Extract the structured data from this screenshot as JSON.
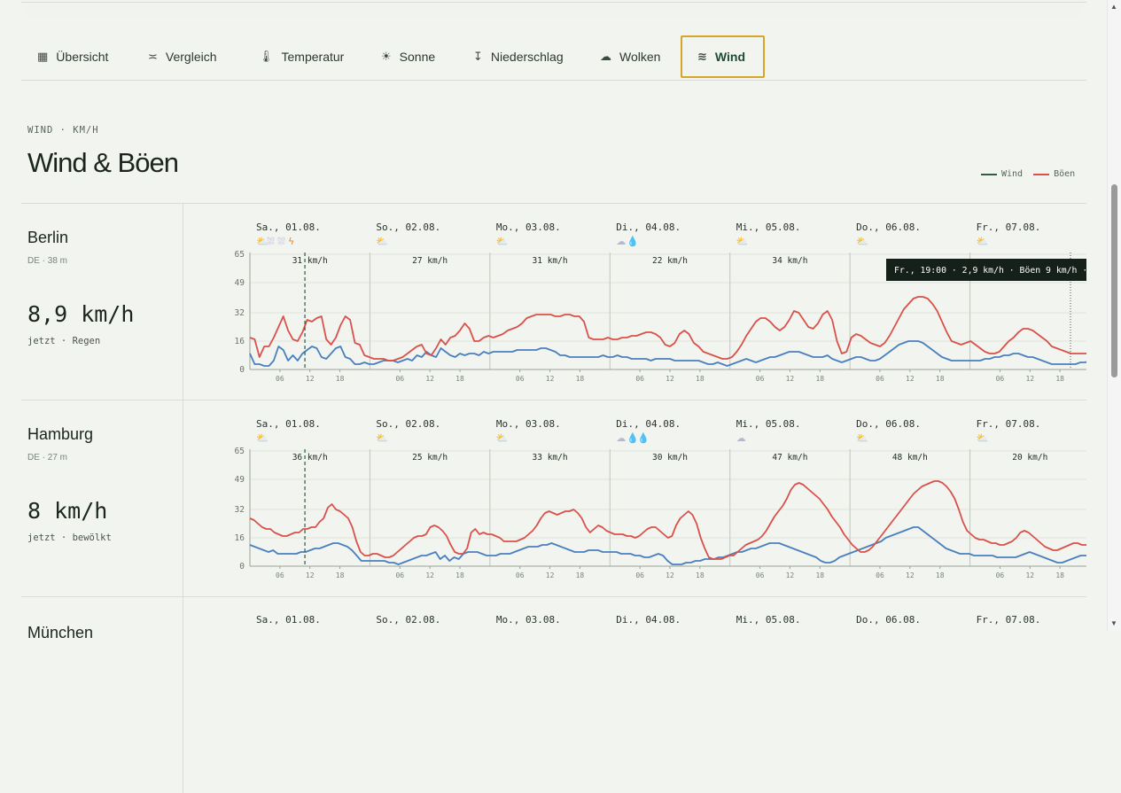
{
  "tabs": [
    {
      "label": "Übersicht",
      "icon": "grid-icon",
      "glyph": "▦"
    },
    {
      "label": "Vergleich",
      "icon": "compare-icon",
      "glyph": "≍"
    },
    {
      "label": "Temperatur",
      "icon": "thermometer-icon",
      "glyph": "🌡"
    },
    {
      "label": "Sonne",
      "icon": "sun-icon",
      "glyph": "☀"
    },
    {
      "label": "Niederschlag",
      "icon": "precipitation-icon",
      "glyph": "↧"
    },
    {
      "label": "Wolken",
      "icon": "cloud-icon",
      "glyph": "☁"
    },
    {
      "label": "Wind",
      "icon": "wind-icon",
      "glyph": "≋",
      "active": true
    }
  ],
  "header": {
    "eyebrow": "WIND · KM/H",
    "title": "Wind & Böen"
  },
  "legend": {
    "wind": "Wind",
    "gusts": "Böen",
    "wind_color": "#2f5d43",
    "gust_color": "#d9514a"
  },
  "colors": {
    "wind_line": "#4a7fbf",
    "gust_line": "#d9514a",
    "accent": "#d6a52c"
  },
  "days": [
    "Sa., 01.08.",
    "So., 02.08.",
    "Mo., 03.08.",
    "Di., 04.08.",
    "Mi., 05.08.",
    "Do., 06.08.",
    "Fr., 07.08."
  ],
  "hour_ticks": [
    "06",
    "12",
    "18"
  ],
  "chart_data": [
    {
      "type": "line",
      "title": "Berlin",
      "ylim": [
        0,
        65
      ],
      "yticks": [
        0,
        16,
        32,
        49,
        65
      ],
      "daily_max_labels": [
        "31 km/h",
        "27 km/h",
        "31 km/h",
        "22 km/h",
        "34 km/h",
        "",
        ""
      ],
      "weather_icons": [
        [
          "cloud-sun",
          "rain",
          "rain",
          "thunder"
        ],
        [
          "partly-sunny"
        ],
        [
          "partly-sunny"
        ],
        [
          "cloud",
          "drop"
        ],
        [
          "partly-sunny"
        ],
        [
          "partly-sunny"
        ],
        [
          "partly-sunny"
        ]
      ],
      "tooltip": "Fr., 19:00 · 2,9 km/h · Böen 9 km/h ·",
      "now_hour": 11,
      "series": [
        {
          "name": "Wind",
          "values": [
            9,
            3,
            3,
            2,
            2,
            5,
            13,
            11,
            5,
            8,
            5,
            9,
            11,
            13,
            12,
            7,
            6,
            9,
            12,
            13,
            7,
            6,
            3,
            3,
            4,
            3,
            3,
            4,
            5,
            5,
            5,
            4,
            5,
            6,
            5,
            8,
            7,
            10,
            8,
            7,
            12,
            10,
            8,
            7,
            9,
            8,
            9,
            9,
            8,
            10,
            9,
            10,
            10,
            10,
            10,
            10,
            11,
            11,
            11,
            11,
            11,
            12,
            12,
            11,
            10,
            8,
            8,
            7,
            7,
            7,
            7,
            7,
            7,
            7,
            8,
            7,
            7,
            8,
            7,
            7,
            6,
            6,
            6,
            6,
            5,
            6,
            6,
            6,
            6,
            5,
            5,
            5,
            5,
            5,
            5,
            4,
            3,
            3,
            4,
            3,
            2,
            3,
            4,
            5,
            6,
            5,
            4,
            5,
            6,
            7,
            7,
            8,
            9,
            10,
            10,
            10,
            9,
            8,
            7,
            7,
            7,
            8,
            6,
            5,
            4,
            5,
            6,
            7,
            7,
            6,
            5,
            5,
            6,
            8,
            10,
            12,
            14,
            15,
            16,
            16,
            16,
            15,
            13,
            11,
            9,
            7,
            6,
            5,
            5,
            5,
            5,
            5,
            5,
            5,
            6,
            6,
            7,
            7,
            8,
            8,
            9,
            9,
            8,
            7,
            7,
            6,
            5,
            4,
            3,
            3,
            3,
            3,
            3,
            3,
            4,
            4,
            5
          ]
        },
        {
          "name": "Böen",
          "values": [
            18,
            17,
            7,
            13,
            13,
            18,
            24,
            30,
            22,
            17,
            16,
            21,
            28,
            27,
            29,
            30,
            17,
            14,
            18,
            25,
            30,
            28,
            15,
            14,
            8,
            7,
            6,
            6,
            6,
            5,
            5,
            6,
            7,
            9,
            11,
            13,
            14,
            9,
            8,
            12,
            17,
            14,
            18,
            19,
            22,
            26,
            23,
            16,
            16,
            18,
            19,
            18,
            19,
            20,
            22,
            23,
            24,
            26,
            29,
            30,
            31,
            31,
            31,
            31,
            30,
            30,
            31,
            31,
            30,
            30,
            27,
            18,
            17,
            17,
            17,
            18,
            17,
            17,
            18,
            18,
            19,
            19,
            20,
            21,
            21,
            20,
            18,
            14,
            13,
            15,
            20,
            22,
            20,
            15,
            13,
            10,
            9,
            8,
            7,
            6,
            6,
            7,
            10,
            14,
            19,
            23,
            27,
            29,
            29,
            27,
            24,
            22,
            24,
            28,
            33,
            32,
            28,
            24,
            23,
            26,
            31,
            33,
            28,
            16,
            9,
            10,
            18,
            20,
            19,
            17,
            15,
            14,
            13,
            15,
            19,
            24,
            29,
            34,
            37,
            40,
            41,
            41,
            40,
            37,
            33,
            27,
            21,
            16,
            15,
            14,
            15,
            16,
            14,
            12,
            10,
            9,
            9,
            10,
            13,
            16,
            18,
            21,
            23,
            23,
            22,
            20,
            18,
            16,
            13,
            12,
            11,
            10,
            9,
            9,
            9,
            9,
            9
          ]
        }
      ]
    },
    {
      "type": "line",
      "title": "Hamburg",
      "ylim": [
        0,
        65
      ],
      "yticks": [
        0,
        16,
        32,
        49,
        65
      ],
      "daily_max_labels": [
        "36 km/h",
        "25 km/h",
        "33 km/h",
        "30 km/h",
        "47 km/h",
        "48 km/h",
        "20 km/h"
      ],
      "weather_icons": [
        [
          "partly-sunny"
        ],
        [
          "partly-sunny"
        ],
        [
          "partly-sunny"
        ],
        [
          "cloud",
          "drop",
          "drop"
        ],
        [
          "cloud"
        ],
        [
          "partly-sunny"
        ],
        [
          "partly-sunny"
        ]
      ],
      "now_hour": 11,
      "series": [
        {
          "name": "Wind",
          "values": [
            12,
            11,
            10,
            9,
            8,
            9,
            7,
            7,
            7,
            7,
            7,
            8,
            8,
            9,
            10,
            10,
            11,
            12,
            13,
            13,
            12,
            11,
            9,
            6,
            3,
            3,
            3,
            3,
            3,
            3,
            2,
            2,
            1,
            2,
            3,
            4,
            5,
            6,
            6,
            7,
            8,
            4,
            6,
            3,
            5,
            4,
            7,
            8,
            8,
            8,
            7,
            6,
            6,
            6,
            7,
            7,
            7,
            8,
            9,
            10,
            11,
            11,
            11,
            12,
            12,
            13,
            12,
            11,
            10,
            9,
            8,
            8,
            8,
            9,
            9,
            9,
            8,
            8,
            8,
            8,
            7,
            7,
            7,
            6,
            6,
            5,
            5,
            6,
            7,
            6,
            3,
            1,
            1,
            1,
            2,
            2,
            3,
            3,
            4,
            4,
            4,
            5,
            5,
            6,
            7,
            8,
            8,
            9,
            10,
            10,
            11,
            12,
            13,
            13,
            13,
            12,
            11,
            10,
            9,
            8,
            7,
            6,
            5,
            3,
            2,
            2,
            3,
            5,
            6,
            7,
            8,
            9,
            10,
            11,
            12,
            13,
            14,
            16,
            17,
            18,
            19,
            20,
            21,
            22,
            22,
            20,
            18,
            16,
            14,
            12,
            10,
            9,
            8,
            7,
            7,
            7,
            6,
            6,
            6,
            6,
            6,
            5,
            5,
            5,
            5,
            5,
            6,
            7,
            8,
            7,
            6,
            5,
            4,
            3,
            2,
            2,
            3,
            4,
            5,
            6,
            6,
            6
          ]
        },
        {
          "name": "Böen",
          "values": [
            27,
            26,
            24,
            22,
            21,
            21,
            19,
            18,
            17,
            17,
            18,
            19,
            19,
            21,
            21,
            22,
            22,
            25,
            27,
            33,
            35,
            32,
            31,
            29,
            27,
            22,
            14,
            8,
            6,
            6,
            7,
            7,
            6,
            5,
            5,
            6,
            8,
            10,
            12,
            14,
            16,
            17,
            17,
            18,
            22,
            23,
            22,
            20,
            17,
            12,
            8,
            7,
            7,
            10,
            19,
            21,
            18,
            19,
            18,
            18,
            17,
            16,
            14,
            14,
            14,
            14,
            15,
            16,
            18,
            20,
            23,
            27,
            30,
            31,
            30,
            29,
            30,
            31,
            31,
            32,
            30,
            27,
            22,
            19,
            21,
            23,
            22,
            20,
            19,
            18,
            18,
            18,
            17,
            17,
            16,
            17,
            19,
            21,
            22,
            22,
            20,
            18,
            16,
            17,
            23,
            27,
            29,
            31,
            29,
            24,
            16,
            10,
            5,
            4,
            4,
            4,
            5,
            6,
            6,
            8,
            10,
            12,
            13,
            14,
            15,
            17,
            20,
            24,
            28,
            31,
            34,
            38,
            43,
            46,
            47,
            46,
            44,
            42,
            40,
            38,
            35,
            32,
            28,
            25,
            22,
            18,
            15,
            12,
            10,
            8,
            8,
            9,
            11,
            14,
            17,
            20,
            23,
            26,
            29,
            32,
            35,
            38,
            41,
            43,
            45,
            46,
            47,
            48,
            48,
            47,
            45,
            42,
            38,
            32,
            25,
            20,
            18,
            16,
            15,
            15,
            14,
            13,
            13,
            12,
            12,
            13,
            14,
            16,
            19,
            20,
            19,
            17,
            15,
            13,
            11,
            10,
            9,
            9,
            10,
            11,
            12,
            13,
            13,
            12,
            12,
            12
          ]
        }
      ]
    }
  ],
  "cities": [
    {
      "name": "Berlin",
      "meta": "DE · 38 m",
      "speed": "8,9 km/h",
      "status": "jetzt · Regen"
    },
    {
      "name": "Hamburg",
      "meta": "DE · 27 m",
      "speed": "8 km/h",
      "status": "jetzt · bewölkt"
    },
    {
      "name": "München"
    }
  ]
}
